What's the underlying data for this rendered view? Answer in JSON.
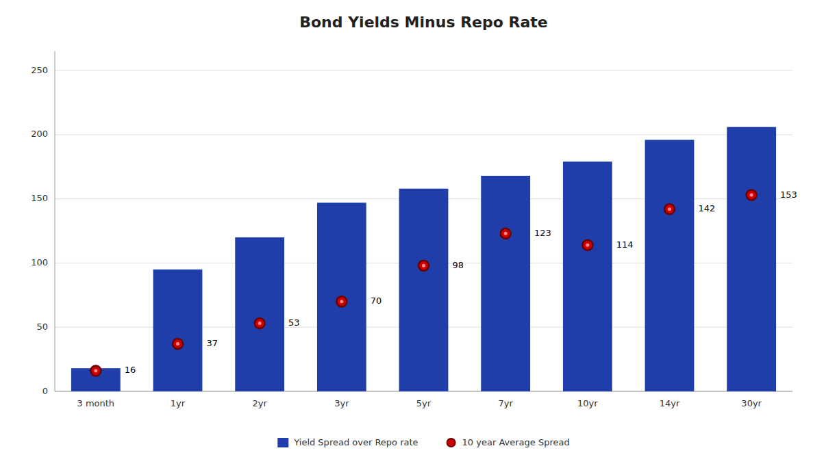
{
  "chart_data": {
    "type": "bar",
    "title": "Bond Yields Minus Repo Rate",
    "categories": [
      "3 month",
      "1yr",
      "2yr",
      "3yr",
      "5yr",
      "7yr",
      "10yr",
      "14yr",
      "30yr"
    ],
    "series": [
      {
        "name": "Yield Spread over Repo rate",
        "type": "bar",
        "color": "#1F3EAA",
        "values": [
          18,
          95,
          120,
          147,
          158,
          168,
          179,
          196,
          206
        ]
      },
      {
        "name": "10 year Average Spread",
        "type": "scatter",
        "marker": "circle",
        "color": "#CC0000",
        "data_labels": true,
        "values": [
          16,
          37,
          53,
          70,
          98,
          123,
          114,
          142,
          153
        ]
      }
    ],
    "ylim": [
      0,
      265
    ],
    "yticks": [
      0,
      50,
      100,
      150,
      200,
      250
    ],
    "grid": true,
    "legend": "bottom"
  }
}
